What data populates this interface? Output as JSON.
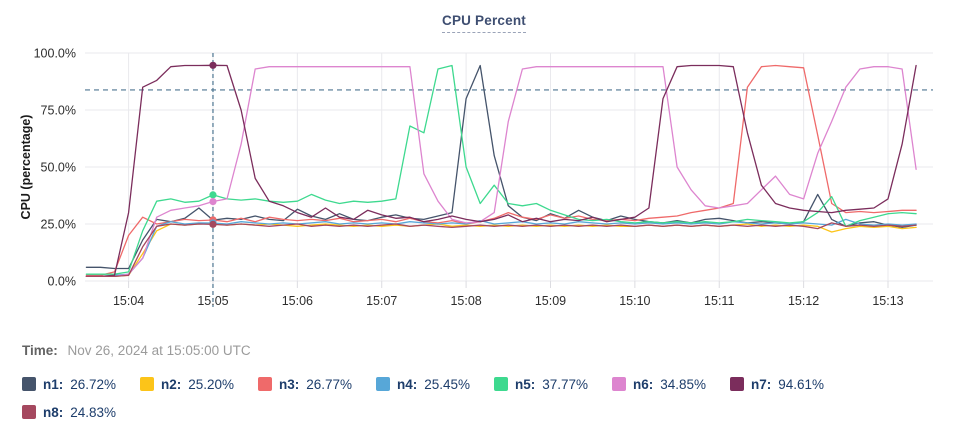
{
  "title": "CPU Percent",
  "time": {
    "label": "Time:",
    "value": "Nov 26, 2024 at 15:05:00 UTC"
  },
  "legend": [
    {
      "label": "n1:",
      "value": "26.72%",
      "color": "#45546b"
    },
    {
      "label": "n2:",
      "value": "25.20%",
      "color": "#fcc419"
    },
    {
      "label": "n3:",
      "value": "26.77%",
      "color": "#ef6a6a"
    },
    {
      "label": "n4:",
      "value": "25.45%",
      "color": "#57a7d8"
    },
    {
      "label": "n5:",
      "value": "37.77%",
      "color": "#3ed98f"
    },
    {
      "label": "n6:",
      "value": "34.85%",
      "color": "#dd85cf"
    },
    {
      "label": "n7:",
      "value": "94.61%",
      "color": "#7b2d5c"
    },
    {
      "label": "n8:",
      "value": "24.83%",
      "color": "#a5485f"
    }
  ],
  "colors": {
    "grid": "#e9e9ed",
    "tick_mark": "#dcdce1",
    "crosshair": "#4d7590",
    "threshold": "#4d7590"
  },
  "chart_data": {
    "type": "line",
    "title": "CPU Percent",
    "xlabel": "",
    "ylabel": "CPU (percentage)",
    "ylim": [
      0,
      100
    ],
    "grid": true,
    "legend_position": "bottom",
    "y_ticks": [
      {
        "v": 0,
        "label": "0.0%"
      },
      {
        "v": 25,
        "label": "25.0%"
      },
      {
        "v": 50,
        "label": "50.0%"
      },
      {
        "v": 75,
        "label": "75.0%"
      },
      {
        "v": 100,
        "label": "100.0%"
      }
    ],
    "x_ticks": [
      {
        "t": 240,
        "label": "15:04"
      },
      {
        "t": 300,
        "label": "15:05"
      },
      {
        "t": 360,
        "label": "15:06"
      },
      {
        "t": 420,
        "label": "15:07"
      },
      {
        "t": 480,
        "label": "15:08"
      },
      {
        "t": 540,
        "label": "15:09"
      },
      {
        "t": 600,
        "label": "15:10"
      },
      {
        "t": 660,
        "label": "15:11"
      },
      {
        "t": 720,
        "label": "15:12"
      },
      {
        "t": 780,
        "label": "15:13"
      }
    ],
    "x_domain_seconds_after_15h": [
      209,
      812
    ],
    "sample_start_seconds_after_15h": 210,
    "sample_step_seconds": 10,
    "threshold_percent": 83.8,
    "crosshair": {
      "t": 300,
      "time_label": "15:05:00 UTC"
    },
    "series": [
      {
        "name": "n1",
        "color": "#45546b",
        "value_at_crosshair": 26.72,
        "values": [
          6,
          6,
          5.5,
          5.5,
          18,
          27,
          26,
          27.5,
          32,
          26.72,
          27.5,
          27,
          28.5,
          27,
          26.5,
          31.5,
          28.5,
          27,
          29.5,
          27,
          26.5,
          28,
          29,
          27.5,
          27,
          28.5,
          30,
          80,
          94.5,
          55,
          33,
          28,
          26.5,
          29.5,
          27.5,
          31,
          28,
          26.5,
          28.5,
          27,
          26,
          25.5,
          26.5,
          25.5,
          27,
          27.5,
          26.5,
          25.5,
          26,
          25.5,
          25,
          26,
          38,
          27,
          24,
          25.5,
          26,
          24.5,
          23.5,
          24.5
        ]
      },
      {
        "name": "n2",
        "color": "#fcc419",
        "value_at_crosshair": 25.2,
        "values": [
          2,
          2,
          2,
          2.5,
          12,
          22,
          25,
          24.5,
          25,
          25.2,
          24.5,
          25,
          24.5,
          25,
          24.5,
          24,
          24.5,
          25,
          24.5,
          24,
          24.5,
          24,
          24.5,
          24,
          24.5,
          25,
          24,
          24.5,
          24,
          24.5,
          24,
          24.5,
          24,
          24.5,
          24,
          24.5,
          24,
          24.5,
          24,
          24,
          24.5,
          24,
          24.5,
          24,
          24.5,
          24,
          24.5,
          25,
          24,
          24.5,
          24,
          24.5,
          24,
          21.5,
          23,
          24,
          23.5,
          24,
          23,
          23.5
        ]
      },
      {
        "name": "n3",
        "color": "#ef6a6a",
        "value_at_crosshair": 26.77,
        "values": [
          2.5,
          2.5,
          4,
          20,
          28,
          25,
          26,
          27,
          26.5,
          26.77,
          26,
          27.5,
          26,
          28,
          27,
          26.5,
          27,
          26.5,
          27.5,
          26,
          26.5,
          27,
          26,
          27.5,
          26,
          25.5,
          26.5,
          25,
          26,
          27.5,
          30,
          28,
          27,
          29,
          27.5,
          28.5,
          27,
          26.5,
          27,
          26.5,
          27.5,
          28,
          28.5,
          30,
          31,
          32,
          34,
          85,
          94,
          94.5,
          94,
          93.5,
          64,
          34,
          30,
          30.5,
          30,
          30.5,
          31,
          31
        ]
      },
      {
        "name": "n4",
        "color": "#57a7d8",
        "value_at_crosshair": 25.45,
        "values": [
          2,
          2,
          2.5,
          3,
          10,
          24,
          26,
          25,
          25.5,
          25.45,
          25,
          26,
          25.5,
          25,
          25.5,
          25,
          25.5,
          26,
          25,
          25.5,
          25,
          25.5,
          25,
          26,
          25.5,
          25,
          25.5,
          25,
          26.5,
          25,
          25.5,
          26,
          25,
          25.5,
          25,
          26,
          25.5,
          25,
          25.5,
          25,
          25.5,
          25,
          25.5,
          25,
          25.5,
          25,
          26,
          25.5,
          25,
          25.5,
          25,
          25.5,
          25,
          24.5,
          27,
          25,
          24.5,
          25,
          24.5,
          25
        ]
      },
      {
        "name": "n5",
        "color": "#3ed98f",
        "value_at_crosshair": 37.77,
        "values": [
          3,
          3,
          3,
          4,
          22,
          35,
          36,
          34.5,
          35,
          37.77,
          36,
          35.5,
          36,
          35,
          34.5,
          35,
          38,
          35.5,
          34,
          35,
          34.5,
          35,
          36,
          68,
          65,
          93,
          94.5,
          50,
          34,
          42,
          34,
          33,
          34,
          31,
          29,
          27,
          26.5,
          27,
          26,
          25.5,
          26,
          25.5,
          26,
          25.5,
          26,
          25.5,
          26,
          27,
          26.5,
          26,
          25.5,
          26,
          30,
          37,
          24,
          26.5,
          28,
          29.5,
          30,
          29.5
        ]
      },
      {
        "name": "n6",
        "color": "#dd85cf",
        "value_at_crosshair": 34.85,
        "values": [
          2,
          2,
          2,
          3,
          10,
          28,
          31,
          32,
          33,
          34.85,
          36,
          60,
          93,
          94,
          94,
          94,
          94,
          94,
          94,
          94,
          94,
          94,
          94,
          94,
          47,
          35,
          27,
          25.5,
          26,
          30,
          70,
          93,
          94,
          94,
          94,
          94,
          94,
          94,
          94,
          94,
          94,
          94,
          50,
          40,
          33,
          32,
          33,
          34,
          40,
          46,
          38,
          36,
          56,
          70,
          85,
          93,
          94,
          94,
          93,
          49
        ]
      },
      {
        "name": "n7",
        "color": "#7b2d5c",
        "value_at_crosshair": 94.61,
        "values": [
          2,
          2,
          2.5,
          30,
          85,
          88,
          94,
          94.5,
          94.5,
          94.61,
          94.5,
          75,
          45,
          35,
          33,
          30,
          28,
          32,
          28,
          27,
          31,
          29,
          27.5,
          28,
          26,
          27,
          28.5,
          27,
          26,
          27,
          29,
          26,
          27.5,
          26,
          27,
          26.5,
          28,
          26,
          27,
          28,
          32,
          80,
          94,
          94.5,
          94.5,
          94.5,
          94,
          65,
          42,
          34,
          32,
          31,
          30.5,
          30,
          31,
          31.5,
          32,
          36,
          60,
          94.5
        ]
      },
      {
        "name": "n8",
        "color": "#a5485f",
        "value_at_crosshair": 24.83,
        "values": [
          2,
          2,
          2,
          2.5,
          15,
          24,
          25,
          24.5,
          25,
          24.83,
          24.5,
          25,
          24.5,
          24,
          24.5,
          25,
          24,
          24.5,
          24,
          24.5,
          24,
          24.5,
          25,
          24,
          24.5,
          24,
          23.5,
          24,
          24.5,
          24,
          24.5,
          24,
          24.5,
          24,
          24.5,
          24,
          24.5,
          24,
          24.5,
          24,
          24.5,
          24,
          24.5,
          24,
          24.5,
          24,
          24.5,
          24,
          24.5,
          24,
          24.5,
          24,
          23,
          25.5,
          24,
          24.5,
          24,
          24.5,
          24,
          24.5
        ]
      }
    ]
  }
}
